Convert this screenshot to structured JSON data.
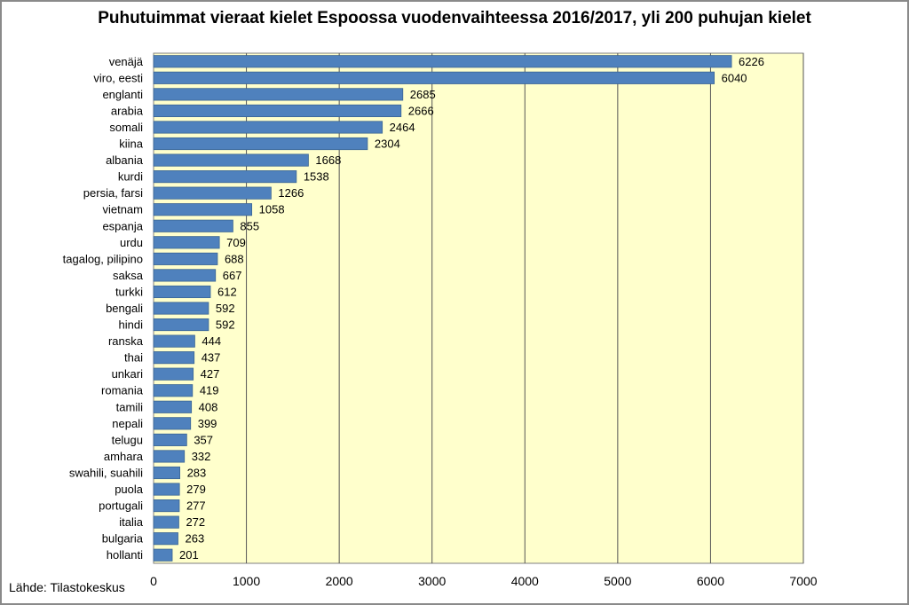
{
  "chart_data": {
    "type": "bar",
    "orientation": "horizontal",
    "title": "Puhutuimmat vieraat kielet Espoossa vuodenvaihteessa 2016/2017, yli 200 puhujan kielet",
    "categories": [
      "venäjä",
      "viro, eesti",
      "englanti",
      "arabia",
      "somali",
      "kiina",
      "albania",
      "kurdi",
      "persia, farsi",
      "vietnam",
      "espanja",
      "urdu",
      "tagalog, pilipino",
      "saksa",
      "turkki",
      "bengali",
      "hindi",
      "ranska",
      "thai",
      "unkari",
      "romania",
      "tamili",
      "nepali",
      "telugu",
      "amhara",
      "swahili, suahili",
      "puola",
      "portugali",
      "italia",
      "bulgaria",
      "hollanti"
    ],
    "values": [
      6226,
      6040,
      2685,
      2666,
      2464,
      2304,
      1668,
      1538,
      1266,
      1058,
      855,
      709,
      688,
      667,
      612,
      592,
      592,
      444,
      437,
      427,
      419,
      408,
      399,
      357,
      332,
      283,
      279,
      277,
      272,
      263,
      201
    ],
    "xlim": [
      0,
      7000
    ],
    "xticks": [
      0,
      1000,
      2000,
      3000,
      4000,
      5000,
      6000,
      7000
    ],
    "xtick_labels": [
      "0",
      "1000",
      "2000",
      "3000",
      "4000",
      "5000",
      "6000",
      "7000"
    ],
    "grid": true,
    "colors": {
      "bar": "#4f81bd",
      "bar_edge": "#3a6594",
      "plot_bg": "#ffffcc",
      "grid": "#555555"
    }
  },
  "source": "Lähde: Tilastokeskus"
}
